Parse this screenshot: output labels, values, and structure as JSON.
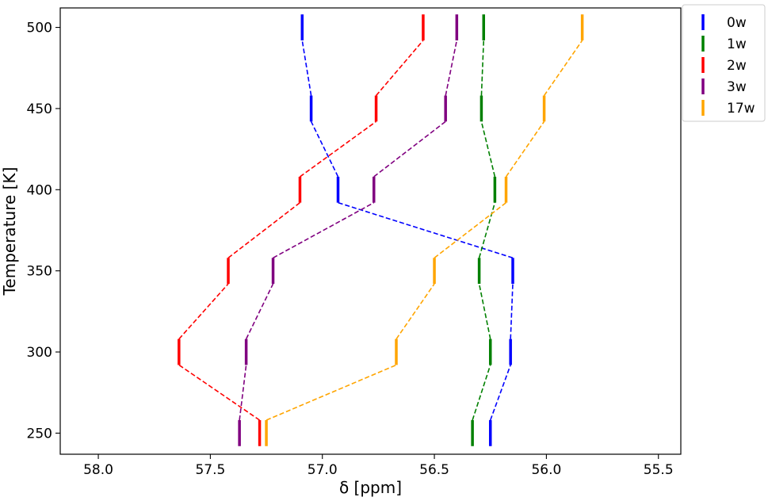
{
  "chart_data": {
    "type": "line",
    "title": "",
    "xlabel": "δ [ppm]",
    "ylabel": "Temperature [K]",
    "x_inverted": true,
    "xlim": [
      58.17,
      55.4
    ],
    "ylim": [
      237,
      512
    ],
    "xticks": [
      58.0,
      57.5,
      57.0,
      56.5,
      56.0,
      55.5
    ],
    "xtick_labels": [
      "58.0",
      "57.5",
      "57.0",
      "56.5",
      "56.0",
      "55.5"
    ],
    "yticks": [
      250,
      300,
      350,
      400,
      450,
      500
    ],
    "ytick_labels": [
      "250",
      "300",
      "350",
      "400",
      "450",
      "500"
    ],
    "grid": false,
    "legend_position": "top-right",
    "marker": "vertical bar spanning ±8 K, connected by dashed lines",
    "series": [
      {
        "name": "0w",
        "color": "#0000ff",
        "x": [
          56.25,
          56.16,
          56.15,
          56.93,
          57.05,
          57.09
        ],
        "y": [
          250,
          300,
          350,
          400,
          450,
          500
        ]
      },
      {
        "name": "1w",
        "color": "#008000",
        "x": [
          56.33,
          56.25,
          56.3,
          56.23,
          56.29,
          56.28
        ],
        "y": [
          250,
          300,
          350,
          400,
          450,
          500
        ]
      },
      {
        "name": "2w",
        "color": "#ff0000",
        "x": [
          57.28,
          57.64,
          57.42,
          57.1,
          56.76,
          56.55
        ],
        "y": [
          250,
          300,
          350,
          400,
          450,
          500
        ]
      },
      {
        "name": "3w",
        "color": "#800080",
        "x": [
          57.37,
          57.34,
          57.22,
          56.77,
          56.45,
          56.4
        ],
        "y": [
          250,
          300,
          350,
          400,
          450,
          500
        ]
      },
      {
        "name": "17w",
        "color": "#ffa500",
        "x": [
          57.25,
          56.67,
          56.5,
          56.18,
          56.01,
          55.84
        ],
        "y": [
          250,
          300,
          350,
          400,
          450,
          500
        ]
      }
    ]
  }
}
